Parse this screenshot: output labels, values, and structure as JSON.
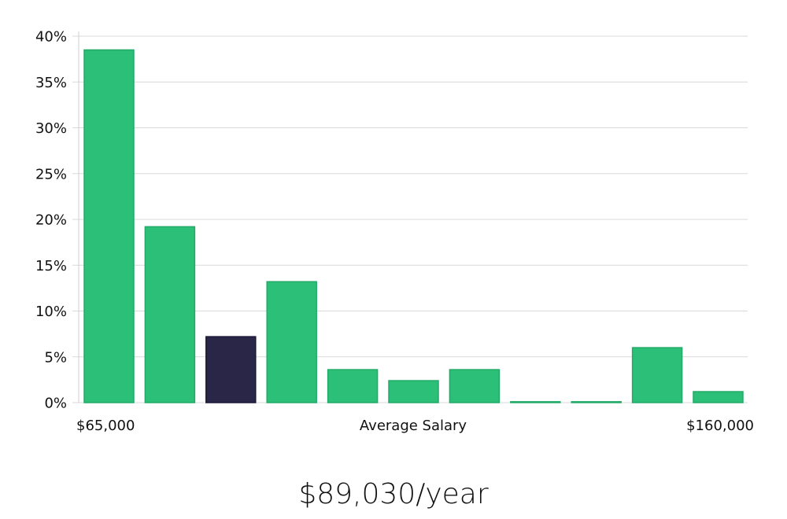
{
  "chart_data": {
    "type": "bar",
    "xlabel": "Average Salary",
    "x_range_labels": [
      "$65,000",
      "$160,000"
    ],
    "y_ticks": [
      "0%",
      "5%",
      "10%",
      "15%",
      "20%",
      "25%",
      "30%",
      "35%",
      "40%"
    ],
    "ylim": [
      0,
      40
    ],
    "grid": true,
    "values": [
      38.5,
      19.2,
      7.2,
      13.2,
      3.6,
      2.4,
      3.6,
      0.1,
      0.1,
      6.0,
      1.2
    ],
    "highlight_index": 2,
    "colors": {
      "bar": "#2bbf77",
      "bar_edge": "#22ab68",
      "highlight": "#2a2647",
      "highlight_edge": "#1b1838",
      "grid": "#d9d9d9",
      "axis": "#cfcfcf"
    }
  },
  "summary": {
    "salary": "$89,030/year"
  }
}
